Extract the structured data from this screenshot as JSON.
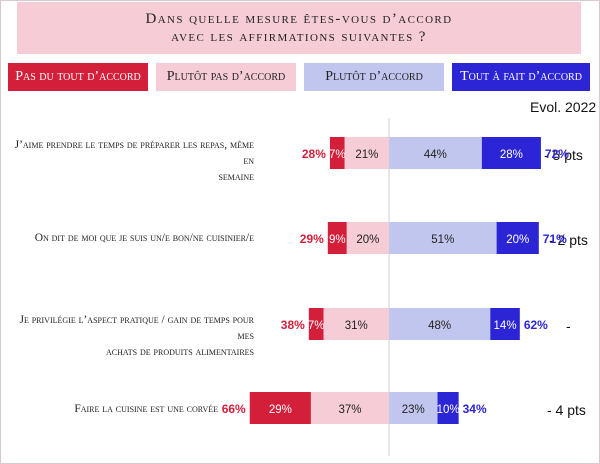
{
  "title_lines": [
    "Dans quelle mesure êtes-vous d’accord",
    "avec les affirmations suivantes ?"
  ],
  "evol_header": "Evol. 2022",
  "legend": [
    {
      "label": "Pas du tout d’accord",
      "bg": "#d41f3a",
      "fg": "#ffffff"
    },
    {
      "label": "Plutôt pas d’accord",
      "bg": "#f6cdd7",
      "fg": "#222222"
    },
    {
      "label": "Plutôt d’accord",
      "bg": "#c1c6ee",
      "fg": "#222222"
    },
    {
      "label": "Tout à fait d’accord",
      "bg": "#2c25d6",
      "fg": "#ffffff"
    }
  ],
  "colors": {
    "pas_du_tout": "#d41f3a",
    "plutot_pas": "#f6cdd7",
    "plutot": "#c1c6ee",
    "tout_a_fait": "#2c25d6",
    "total_disagree_text": "#d41f3a",
    "total_agree_text": "#2c25d6"
  },
  "rows": [
    {
      "label_lines": [
        "J’aime prendre le temps de préparer les repas, même en",
        "semaine"
      ],
      "evol": "- 5 pts"
    },
    {
      "label_lines": [
        "On dit de moi que je suis un/e bon/ne cuisinier/e"
      ],
      "evol": "- 2 pts"
    },
    {
      "label_lines": [
        "Je privilégie l’aspect pratique / gain de temps pour mes",
        "achats de produits alimentaires"
      ],
      "evol": "-"
    },
    {
      "label_lines": [
        "Faire la cuisine est une corvée"
      ],
      "evol": "- 4 pts"
    }
  ],
  "chart_data": {
    "type": "bar",
    "orientation": "horizontal",
    "stacked": "diverging",
    "categories": [
      "J’aime prendre le temps de préparer les repas, même en semaine",
      "On dit de moi que je suis un/e bon/ne cuisinier/e",
      "Je privilégie l’aspect pratique / gain de temps pour mes achats de produits alimentaires",
      "Faire la cuisine est une corvée"
    ],
    "series": [
      {
        "name": "Pas du tout d’accord",
        "values": [
          7,
          9,
          7,
          29
        ],
        "labels": [
          "7%",
          "9%",
          "7%",
          "29%"
        ]
      },
      {
        "name": "Plutôt pas d’accord",
        "values": [
          21,
          20,
          31,
          37
        ],
        "labels": [
          "21%",
          "20%",
          "31%",
          "37%"
        ]
      },
      {
        "name": "Plutôt d’accord",
        "values": [
          44,
          51,
          48,
          23
        ],
        "labels": [
          "44%",
          "51%",
          "48%",
          "23%"
        ]
      },
      {
        "name": "Tout à fait d’accord",
        "values": [
          28,
          20,
          14,
          10
        ],
        "labels": [
          "28%",
          "20%",
          "14%",
          "10%"
        ]
      }
    ],
    "total_disagree": [
      28,
      29,
      38,
      66
    ],
    "total_disagree_labels": [
      "28%",
      "29%",
      "38%",
      "66%"
    ],
    "total_agree": [
      72,
      71,
      62,
      34
    ],
    "total_agree_labels": [
      "72%",
      "71%",
      "62%",
      "34%"
    ],
    "evolution_2022": [
      "- 5 pts",
      "- 2 pts",
      "-",
      "- 4 pts"
    ],
    "legend_position": "top",
    "grid": false
  }
}
